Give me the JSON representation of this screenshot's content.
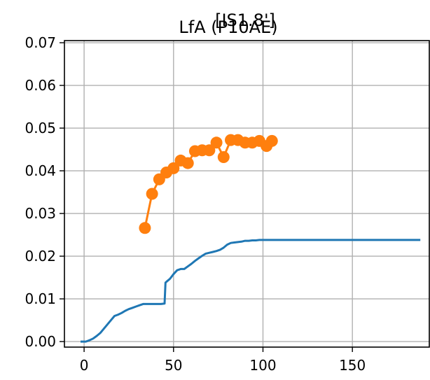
{
  "chart_data": {
    "type": "line",
    "title": "LfA (P10AE)",
    "title_overlap": "[IS1.8']",
    "xlabel": "",
    "ylabel": "",
    "xlim": [
      -11,
      193
    ],
    "ylim": [
      -0.0013,
      0.0705
    ],
    "x_ticks": [
      0,
      50,
      100,
      150
    ],
    "y_ticks": [
      0.0,
      0.01,
      0.02,
      0.03,
      0.04,
      0.05,
      0.06,
      0.07
    ],
    "x_tick_labels": [
      "0",
      "50",
      "100",
      "150"
    ],
    "y_tick_labels": [
      "0.00",
      "0.01",
      "0.02",
      "0.03",
      "0.04",
      "0.05",
      "0.06",
      "0.07"
    ],
    "grid": true,
    "series": [
      {
        "color": "#1f77b4",
        "marker": "none",
        "x": [
          -2,
          1,
          3,
          5,
          7,
          9,
          11,
          13,
          15,
          17,
          19,
          21,
          23,
          25,
          27,
          29,
          31,
          33,
          35,
          37,
          39,
          41,
          43,
          45,
          45.5,
          46,
          48,
          50,
          52,
          54,
          56,
          58,
          60,
          62,
          64,
          66,
          68,
          70,
          72,
          74,
          76,
          78,
          80,
          82,
          84,
          86,
          88,
          90,
          92,
          94,
          96,
          98,
          100,
          110,
          120,
          140,
          160,
          180,
          188
        ],
        "y": [
          0.0,
          0.0,
          0.0003,
          0.0007,
          0.0013,
          0.002,
          0.003,
          0.004,
          0.005,
          0.006,
          0.0063,
          0.0067,
          0.0072,
          0.0076,
          0.0079,
          0.0082,
          0.0085,
          0.0088,
          0.0088,
          0.0088,
          0.0088,
          0.0088,
          0.0088,
          0.0089,
          0.0138,
          0.014,
          0.0147,
          0.0158,
          0.0167,
          0.017,
          0.017,
          0.0176,
          0.0182,
          0.0189,
          0.0195,
          0.0201,
          0.0206,
          0.0208,
          0.021,
          0.0212,
          0.0215,
          0.022,
          0.0227,
          0.0231,
          0.0232,
          0.0233,
          0.0234,
          0.0236,
          0.0236,
          0.0237,
          0.0237,
          0.0238,
          0.0238,
          0.0238,
          0.0238,
          0.0238,
          0.0238,
          0.0238,
          0.0238
        ]
      },
      {
        "color": "#ff7f0e",
        "marker": "circle",
        "x": [
          34,
          38,
          42,
          46,
          50,
          54,
          58,
          62,
          66,
          70,
          74,
          78,
          82,
          86,
          90,
          94,
          98,
          102,
          105
        ],
        "y": [
          0.0266,
          0.0346,
          0.038,
          0.0396,
          0.0406,
          0.0424,
          0.0418,
          0.0446,
          0.0448,
          0.0448,
          0.0466,
          0.0432,
          0.0472,
          0.0472,
          0.0466,
          0.0466,
          0.047,
          0.0458,
          0.047
        ]
      }
    ]
  }
}
